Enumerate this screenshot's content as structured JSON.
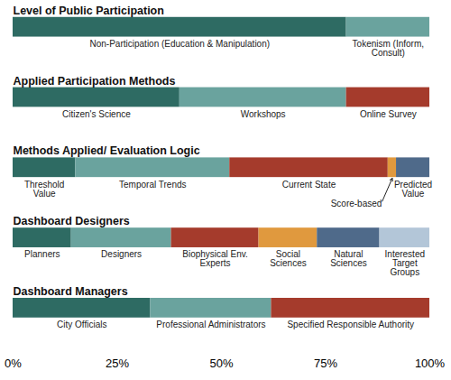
{
  "chart_data": [
    {
      "type": "bar",
      "title": "Level of Public Participation",
      "orientation": "horizontal",
      "stacked": true,
      "tick_labels": false,
      "series": [
        {
          "name": "Non-Participation (Education & Manipulation)",
          "color": "#2e6b63",
          "values": [
            80
          ]
        },
        {
          "name": "Tokenism (Inform, Consult)",
          "color": "#6aa39e",
          "values": [
            20
          ]
        }
      ]
    },
    {
      "type": "bar",
      "title": "Applied Participation Methods",
      "orientation": "horizontal",
      "stacked": true,
      "tick_labels": false,
      "series": [
        {
          "name": "Citizen's Science",
          "color": "#2e6b63",
          "values": [
            40
          ]
        },
        {
          "name": "Workshops",
          "color": "#6aa39e",
          "values": [
            40
          ]
        },
        {
          "name": "Online Survey",
          "color": "#a53b2c",
          "values": [
            20
          ]
        }
      ]
    },
    {
      "type": "bar",
      "title": "Methods Applied/ Evaluation Logic",
      "orientation": "horizontal",
      "stacked": true,
      "tick_labels": false,
      "series": [
        {
          "name": "Threshold Value",
          "color": "#2e6b63",
          "values": [
            15
          ]
        },
        {
          "name": "Temporal Trends",
          "color": "#6aa39e",
          "values": [
            37
          ]
        },
        {
          "name": "Current State",
          "color": "#a53b2c",
          "values": [
            38
          ]
        },
        {
          "name": "Score-based",
          "color": "#e0993e",
          "values": [
            2
          ]
        },
        {
          "name": "Predicted Value",
          "color": "#4f6a8a",
          "values": [
            8
          ]
        }
      ]
    },
    {
      "type": "bar",
      "title": "Dashboard Designers",
      "orientation": "horizontal",
      "stacked": true,
      "tick_labels": false,
      "series": [
        {
          "name": "Planners",
          "color": "#2e6b63",
          "values": [
            14
          ]
        },
        {
          "name": "Designers",
          "color": "#6aa39e",
          "values": [
            24
          ]
        },
        {
          "name": "Biophysical Env. Experts",
          "color": "#a53b2c",
          "values": [
            21
          ]
        },
        {
          "name": "Social Sciences",
          "color": "#e0993e",
          "values": [
            14
          ]
        },
        {
          "name": "Natural Sciences",
          "color": "#4f6a8a",
          "values": [
            15
          ]
        },
        {
          "name": "Interested Target Groups",
          "color": "#b3c6d8",
          "values": [
            12
          ]
        }
      ]
    },
    {
      "type": "bar",
      "title": "Dashboard Managers",
      "orientation": "horizontal",
      "stacked": true,
      "xlim": [
        0,
        100
      ],
      "xticks": [
        {
          "value": 0,
          "label": "0%"
        },
        {
          "value": 25,
          "label": "25%"
        },
        {
          "value": 50,
          "label": "50%"
        },
        {
          "value": 75,
          "label": "75%"
        },
        {
          "value": 100,
          "label": "100%"
        }
      ],
      "series": [
        {
          "name": "City Officials",
          "color": "#2e6b63",
          "values": [
            33
          ]
        },
        {
          "name": "Professional Administrators",
          "color": "#6aa39e",
          "values": [
            29
          ]
        },
        {
          "name": "Specified Responsible Authority",
          "color": "#a53b2c",
          "values": [
            38
          ]
        }
      ]
    }
  ]
}
